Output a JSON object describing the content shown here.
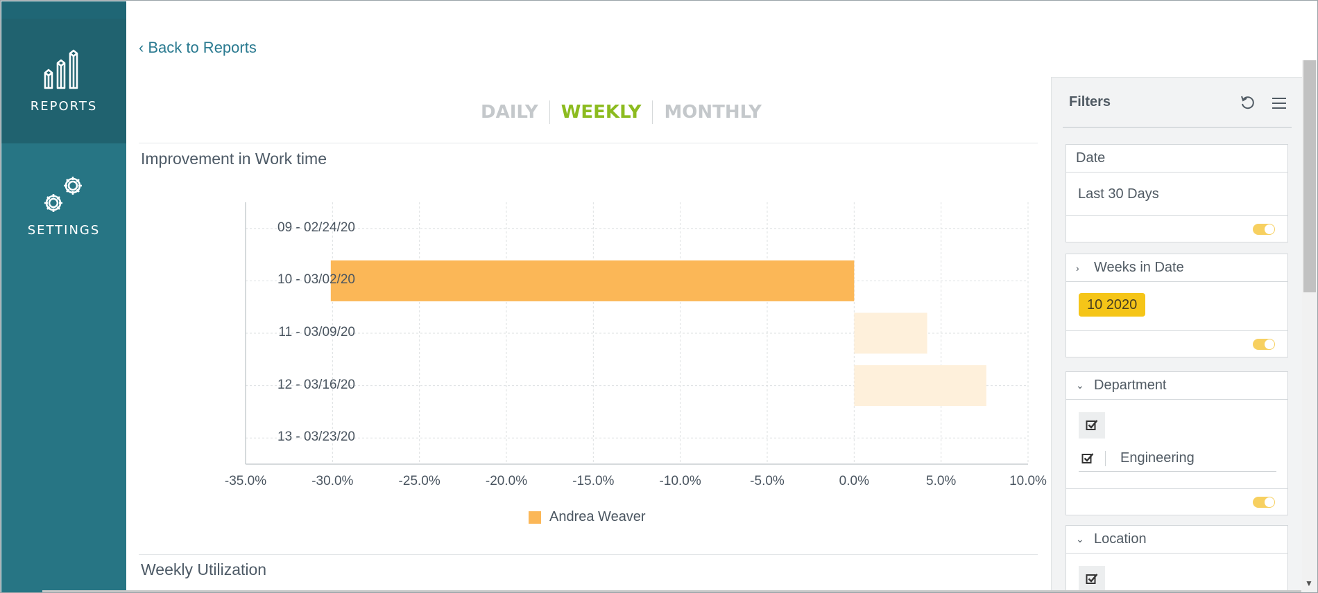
{
  "sidebar": {
    "items": [
      {
        "label": "REPORTS",
        "icon": "reports-chart-icon"
      },
      {
        "label": "SETTINGS",
        "icon": "settings-gears-icon"
      }
    ]
  },
  "main": {
    "back_link": "Back to Reports",
    "period_tabs": [
      {
        "label": "DAILY",
        "active": false
      },
      {
        "label": "WEEKLY",
        "active": true
      },
      {
        "label": "MONTHLY",
        "active": false
      }
    ],
    "section_title": "Improvement in Work time",
    "next_section_title": "Weekly Utilization"
  },
  "chart_data": {
    "type": "bar",
    "orientation": "horizontal",
    "title": "Improvement in Work time",
    "categories": [
      "09 - 02/24/20",
      "10 - 03/02/20",
      "11 - 03/09/20",
      "12 - 03/16/20",
      "13 - 03/23/20"
    ],
    "series": [
      {
        "name": "Andrea Weaver",
        "values": [
          null,
          -30.1,
          4.2,
          7.6,
          null
        ],
        "highlighted": [
          false,
          true,
          false,
          false,
          false
        ]
      }
    ],
    "xlim": [
      -35,
      10
    ],
    "x_ticks": [
      "-35.0%",
      "-30.0%",
      "-25.0%",
      "-20.0%",
      "-15.0%",
      "-10.0%",
      "-5.0%",
      "0.0%",
      "5.0%",
      "10.0%"
    ],
    "grid": true,
    "legend_position": "bottom",
    "colors": {
      "bar": "#fbb757",
      "bar_faded": "#fef0db"
    }
  },
  "filters": {
    "title": "Filters",
    "date": {
      "label": "Date",
      "value": "Last 30 Days"
    },
    "weeks": {
      "label": "Weeks in Date",
      "chip": "10 2020"
    },
    "department": {
      "label": "Department",
      "option": "Engineering"
    },
    "location": {
      "label": "Location"
    }
  },
  "colors": {
    "sidebar": "#277584",
    "sidebar_active": "#20626f",
    "accent": "#8cbb1f",
    "link": "#2a7a90",
    "chip": "#f5c518",
    "toggle": "#f7d060"
  }
}
